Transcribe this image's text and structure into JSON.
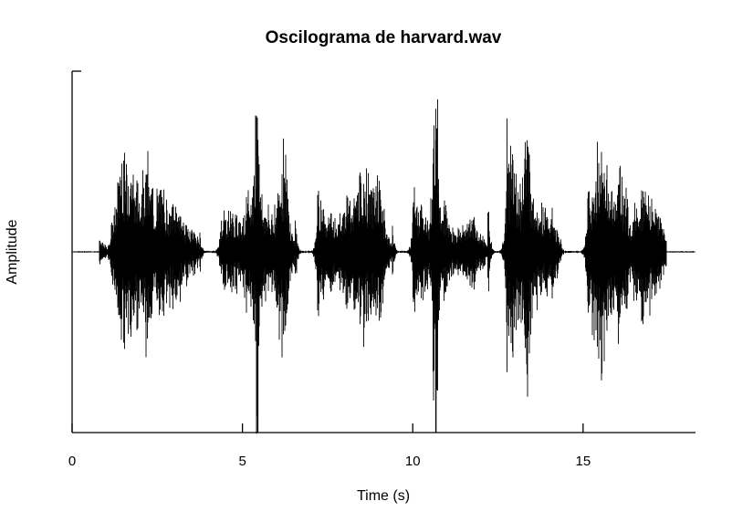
{
  "chart_data": {
    "type": "line",
    "title": "Oscilograma de harvard.wav",
    "xlabel": "Time (s)",
    "ylabel": "Amplitude",
    "xlim": [
      0,
      18.3
    ],
    "ylim": [
      -1,
      1
    ],
    "x_ticks": [
      0,
      5,
      10,
      15
    ],
    "x_tick_labels": [
      "0",
      "5",
      "10",
      "15"
    ],
    "grid": false,
    "series": [
      {
        "color": "#000000",
        "envelope": [
          {
            "x": 0.8,
            "y": 0.06
          },
          {
            "x": 1.05,
            "y": 0.03
          },
          {
            "x": 1.3,
            "y": 0.28
          },
          {
            "x": 1.45,
            "y": 0.65
          },
          {
            "x": 1.55,
            "y": 0.45
          },
          {
            "x": 1.7,
            "y": 0.55
          },
          {
            "x": 1.9,
            "y": 0.35
          },
          {
            "x": 2.05,
            "y": 0.45
          },
          {
            "x": 2.2,
            "y": 0.5
          },
          {
            "x": 2.4,
            "y": 0.3
          },
          {
            "x": 2.65,
            "y": 0.35
          },
          {
            "x": 2.9,
            "y": 0.25
          },
          {
            "x": 3.1,
            "y": 0.28
          },
          {
            "x": 3.35,
            "y": 0.15
          },
          {
            "x": 3.6,
            "y": 0.12
          },
          {
            "x": 3.75,
            "y": 0.04
          },
          {
            "x": 4.35,
            "y": 0.2
          },
          {
            "x": 4.6,
            "y": 0.22
          },
          {
            "x": 4.9,
            "y": 0.18
          },
          {
            "x": 5.3,
            "y": 0.35
          },
          {
            "x": 5.45,
            "y": 1.0
          },
          {
            "x": 5.55,
            "y": 0.3
          },
          {
            "x": 5.8,
            "y": 0.2
          },
          {
            "x": 6.0,
            "y": 0.28
          },
          {
            "x": 6.2,
            "y": 0.6
          },
          {
            "x": 6.4,
            "y": 0.18
          },
          {
            "x": 6.55,
            "y": 0.05
          },
          {
            "x": 7.2,
            "y": 0.4
          },
          {
            "x": 7.4,
            "y": 0.25
          },
          {
            "x": 7.7,
            "y": 0.2
          },
          {
            "x": 8.0,
            "y": 0.28
          },
          {
            "x": 8.3,
            "y": 0.3
          },
          {
            "x": 8.55,
            "y": 0.45
          },
          {
            "x": 8.75,
            "y": 0.35
          },
          {
            "x": 9.05,
            "y": 0.4
          },
          {
            "x": 9.2,
            "y": 0.15
          },
          {
            "x": 9.4,
            "y": 0.04
          },
          {
            "x": 10.0,
            "y": 0.32
          },
          {
            "x": 10.3,
            "y": 0.25
          },
          {
            "x": 10.5,
            "y": 0.15
          },
          {
            "x": 10.68,
            "y": 1.0
          },
          {
            "x": 10.8,
            "y": 0.35
          },
          {
            "x": 11.1,
            "y": 0.15
          },
          {
            "x": 11.4,
            "y": 0.12
          },
          {
            "x": 11.7,
            "y": 0.2
          },
          {
            "x": 12.0,
            "y": 0.1
          },
          {
            "x": 12.2,
            "y": 0.04
          },
          {
            "x": 12.75,
            "y": 0.7
          },
          {
            "x": 12.95,
            "y": 0.45
          },
          {
            "x": 13.2,
            "y": 0.4
          },
          {
            "x": 13.35,
            "y": 0.75
          },
          {
            "x": 13.5,
            "y": 0.35
          },
          {
            "x": 13.75,
            "y": 0.25
          },
          {
            "x": 14.1,
            "y": 0.2
          },
          {
            "x": 14.3,
            "y": 0.08
          },
          {
            "x": 15.1,
            "y": 0.25
          },
          {
            "x": 15.35,
            "y": 0.45
          },
          {
            "x": 15.55,
            "y": 0.6
          },
          {
            "x": 15.8,
            "y": 0.3
          },
          {
            "x": 16.1,
            "y": 0.45
          },
          {
            "x": 16.4,
            "y": 0.2
          },
          {
            "x": 16.7,
            "y": 0.35
          },
          {
            "x": 17.0,
            "y": 0.3
          },
          {
            "x": 17.25,
            "y": 0.2
          },
          {
            "x": 17.45,
            "y": 0.08
          }
        ]
      }
    ]
  }
}
